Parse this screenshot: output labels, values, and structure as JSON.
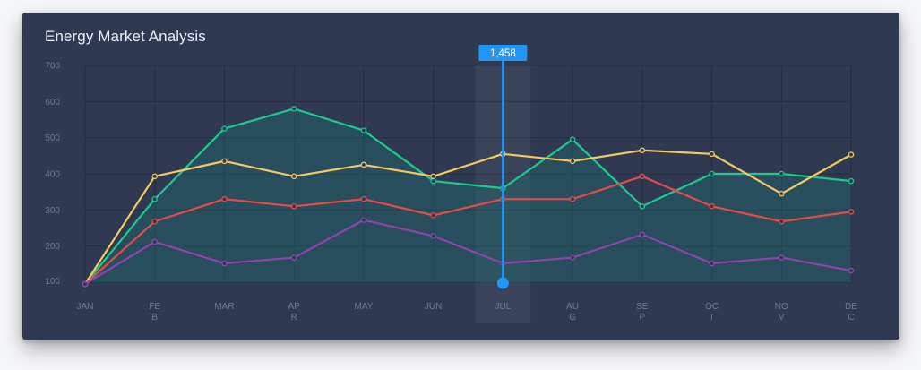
{
  "chart_data": {
    "type": "line",
    "title": "Energy Market Analysis",
    "categories": [
      "JAN",
      "FEB",
      "MAR",
      "APR",
      "MAY",
      "JUN",
      "JUL",
      "AUG",
      "SEP",
      "OCT",
      "NOV",
      "DEC"
    ],
    "category_labels": [
      [
        "JAN"
      ],
      [
        "FE",
        "B"
      ],
      [
        "MAR"
      ],
      [
        "AP",
        "R"
      ],
      [
        "MAY"
      ],
      [
        "JUN"
      ],
      [
        "JUL"
      ],
      [
        "AU",
        "G"
      ],
      [
        "SE",
        "P"
      ],
      [
        "OC",
        "T"
      ],
      [
        "NO",
        "V"
      ],
      [
        "DE",
        "C"
      ]
    ],
    "y_ticks": [
      100,
      200,
      300,
      400,
      500,
      600,
      700
    ],
    "ylim": [
      100,
      700
    ],
    "grid": true,
    "series": [
      {
        "color": "#1fc98e",
        "filled": true,
        "values": [
          95,
          330,
          525,
          580,
          520,
          380,
          360,
          495,
          310,
          400,
          400,
          380
        ]
      },
      {
        "color": "#f3c865",
        "filled": false,
        "values": [
          95,
          393,
          435,
          393,
          425,
          393,
          455,
          435,
          465,
          455,
          345,
          453
        ]
      },
      {
        "color": "#e24c4b",
        "filled": false,
        "values": [
          95,
          268,
          330,
          310,
          330,
          285,
          330,
          330,
          393,
          310,
          268,
          295
        ]
      },
      {
        "color": "#8e44ad",
        "filled": false,
        "values": [
          95,
          212,
          152,
          168,
          272,
          228,
          152,
          168,
          232,
          152,
          168,
          132
        ]
      }
    ],
    "highlight": {
      "category": "JUL",
      "label": "1,458"
    },
    "colors": {
      "background": "#2f3a52",
      "grid": "#232c3f",
      "tick": "#6f7b91",
      "highlight": "#2196f3"
    }
  }
}
